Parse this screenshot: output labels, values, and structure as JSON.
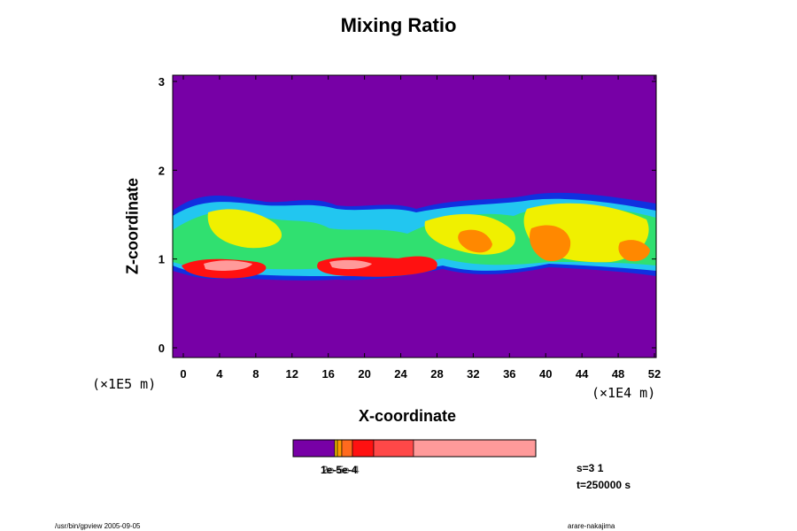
{
  "chart_data": {
    "type": "heatmap",
    "title": "Mixing Ratio",
    "xlabel": "X-coordinate",
    "ylabel": "Z-coordinate",
    "x_ticks": [
      0,
      4,
      8,
      12,
      16,
      20,
      24,
      28,
      32,
      36,
      40,
      44,
      48,
      52
    ],
    "y_ticks": [
      0,
      1,
      2,
      3
    ],
    "xlim": [
      0,
      52
    ],
    "ylim": [
      0,
      3
    ],
    "x_scale_label": "(×1E4 m)",
    "y_scale_label": "(×1E5 m)",
    "background_level_color": "#7700a6",
    "colorbar": {
      "colors": [
        "#7700a6",
        "#f0c000",
        "#ff9900",
        "#ff6a1e",
        "#ff1111",
        "#ff4848",
        "#ff9a9a"
      ],
      "label": "1e-5e-4",
      "label_overlay": "2e-5e-4"
    }
  },
  "info": {
    "s_label": "s=3 1",
    "t_label": "t=250000 s"
  },
  "footer": {
    "left": "/usr/bin/gpview 2005-09-05",
    "right": "arare-nakajima"
  }
}
